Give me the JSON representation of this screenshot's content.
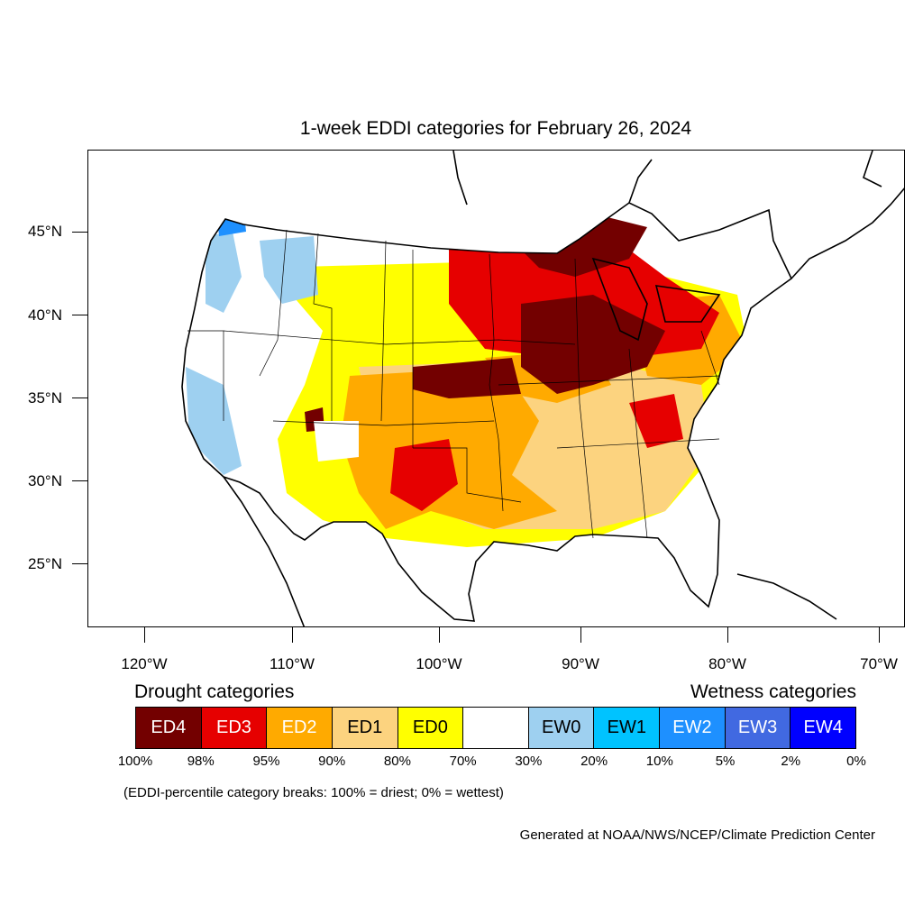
{
  "title": "1-week EDDI categories for February 26, 2024",
  "lat_labels": [
    "45°N",
    "40°N",
    "35°N",
    "30°N",
    "25°N"
  ],
  "lon_labels": [
    "120°W",
    "110°W",
    "100°W",
    "90°W",
    "80°W",
    "70°W"
  ],
  "legend": {
    "drought_heading": "Drought categories",
    "wetness_heading": "Wetness categories",
    "categories": [
      {
        "label": "ED4",
        "color": "#730000",
        "text_color": "#ffffff"
      },
      {
        "label": "ED3",
        "color": "#e60000",
        "text_color": "#ffffff"
      },
      {
        "label": "ED2",
        "color": "#ffaa00",
        "text_color": "#ffffff"
      },
      {
        "label": "ED1",
        "color": "#fcd37f",
        "text_color": "#000000"
      },
      {
        "label": "ED0",
        "color": "#ffff00",
        "text_color": "#000000"
      },
      {
        "label": "",
        "color": "#ffffff",
        "text_color": "#000000"
      },
      {
        "label": "EW0",
        "color": "#9ed0f0",
        "text_color": "#000000"
      },
      {
        "label": "EW1",
        "color": "#00c3ff",
        "text_color": "#000000"
      },
      {
        "label": "EW2",
        "color": "#1e90ff",
        "text_color": "#ffffff"
      },
      {
        "label": "EW3",
        "color": "#4169e1",
        "text_color": "#ffffff"
      },
      {
        "label": "EW4",
        "color": "#0000ff",
        "text_color": "#ffffff"
      }
    ],
    "percentiles": [
      "100%",
      "98%",
      "95%",
      "90%",
      "80%",
      "70%",
      "30%",
      "20%",
      "10%",
      "5%",
      "2%",
      "0%"
    ]
  },
  "note": "(EDDI-percentile category breaks: 100% = driest; 0% = wettest)",
  "credit": "Generated at NOAA/NWS/NCEP/Climate Prediction Center"
}
